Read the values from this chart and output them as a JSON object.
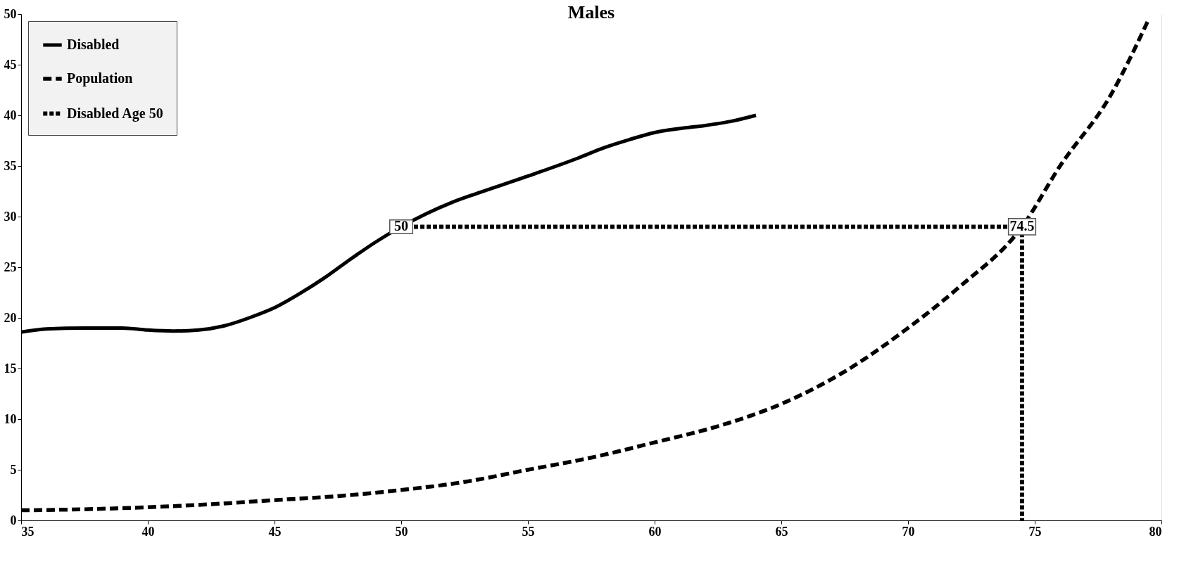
{
  "chart_data": {
    "type": "line",
    "title": "Males",
    "series": [
      {
        "name": "Disabled",
        "color": "#000000",
        "line_style": "solid",
        "x": [
          35,
          36,
          37.5,
          39,
          40,
          41,
          42,
          43,
          44,
          45,
          46,
          47,
          48,
          49,
          50,
          51,
          52,
          53,
          55,
          57,
          58,
          59,
          60,
          61,
          62,
          63,
          64
        ],
        "values": [
          18.6,
          18.9,
          19.0,
          19.0,
          18.8,
          18.7,
          18.8,
          19.2,
          20.0,
          21.0,
          22.4,
          24.0,
          25.8,
          27.5,
          29.0,
          30.3,
          31.4,
          32.3,
          34.0,
          35.8,
          36.8,
          37.6,
          38.3,
          38.7,
          39.0,
          39.4,
          40.0
        ]
      },
      {
        "name": "Population",
        "color": "#000000",
        "line_style": "dashed",
        "x": [
          35,
          37.5,
          40,
          42.5,
          45,
          47.5,
          50,
          52.5,
          55,
          57.5,
          60,
          62.5,
          65,
          67.5,
          70,
          72,
          74.5,
          76,
          78,
          79.5
        ],
        "values": [
          1.0,
          1.1,
          1.3,
          1.6,
          2.0,
          2.4,
          3.0,
          3.8,
          5.0,
          6.2,
          7.7,
          9.3,
          11.5,
          14.7,
          19.0,
          23.0,
          29.0,
          35.0,
          42.0,
          49.5
        ]
      },
      {
        "name": "Disabled Age 50",
        "color": "#000000",
        "line_style": "dashed",
        "x": [
          50,
          74.5,
          74.5
        ],
        "values": [
          29,
          29,
          0
        ]
      }
    ],
    "annotations": [
      {
        "text": "50",
        "x": 50,
        "y": 29
      },
      {
        "text": "74.5",
        "x": 74.5,
        "y": 29
      }
    ],
    "xlim": [
      35,
      80
    ],
    "xticks": [
      35,
      40,
      45,
      50,
      55,
      60,
      65,
      70,
      75,
      80
    ],
    "ylim": [
      0,
      50
    ],
    "yticks": [
      0,
      5,
      10,
      15,
      20,
      25,
      30,
      35,
      40,
      45,
      50
    ],
    "grid": "y",
    "legend": "top left",
    "marker": "none"
  }
}
